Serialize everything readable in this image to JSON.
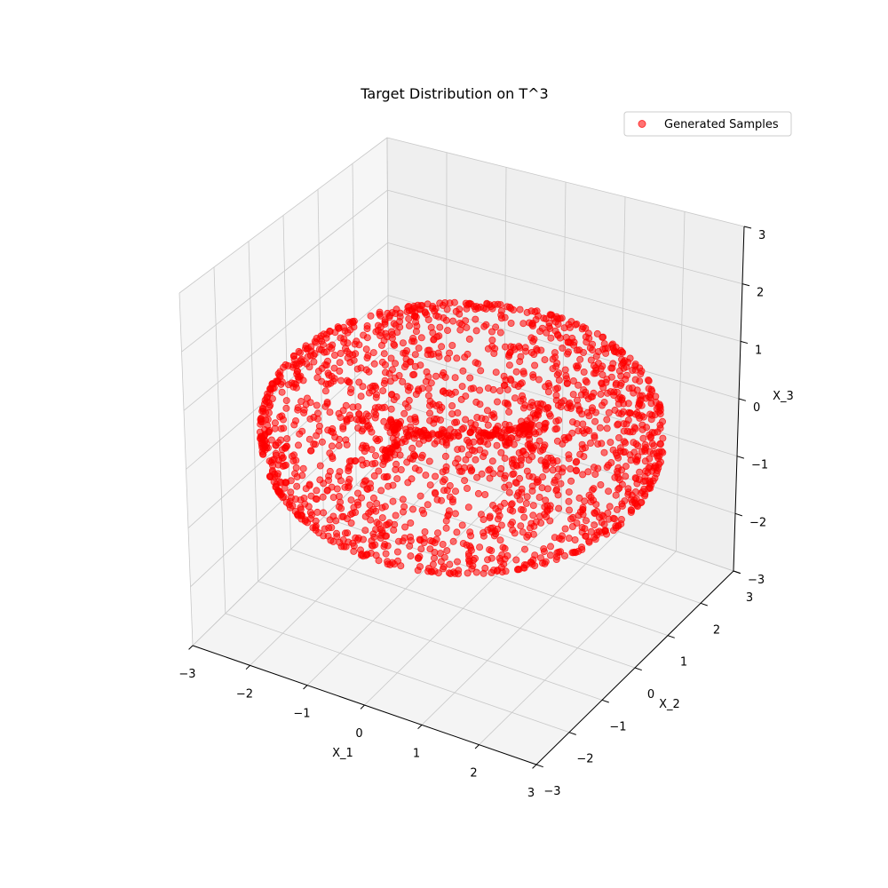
{
  "chart_data": {
    "type": "scatter",
    "title": "Target Distribution on T^3",
    "xlabel": "X_1",
    "ylabel": "X_2",
    "zlabel": "X_3",
    "xlim": [
      -3,
      3
    ],
    "ylim": [
      -3,
      3
    ],
    "zlim": [
      -3,
      3
    ],
    "xticks": [
      "−3",
      "−2",
      "−1",
      "0",
      "1",
      "2",
      "3"
    ],
    "yticks": [
      "−3",
      "−2",
      "−1",
      "0",
      "1",
      "2",
      "3"
    ],
    "zticks": [
      "−3",
      "−2",
      "−1",
      "0",
      "1",
      "2",
      "3"
    ],
    "grid": true,
    "legend": {
      "position": "top-right",
      "entries": [
        "Generated Samples"
      ]
    },
    "series": [
      {
        "name": "Generated Samples",
        "color": "#ff0000",
        "alpha": 0.55,
        "distribution": "uniform on torus",
        "major_radius": 2.0,
        "minor_radius": 1.0,
        "count": 2000
      }
    ]
  }
}
